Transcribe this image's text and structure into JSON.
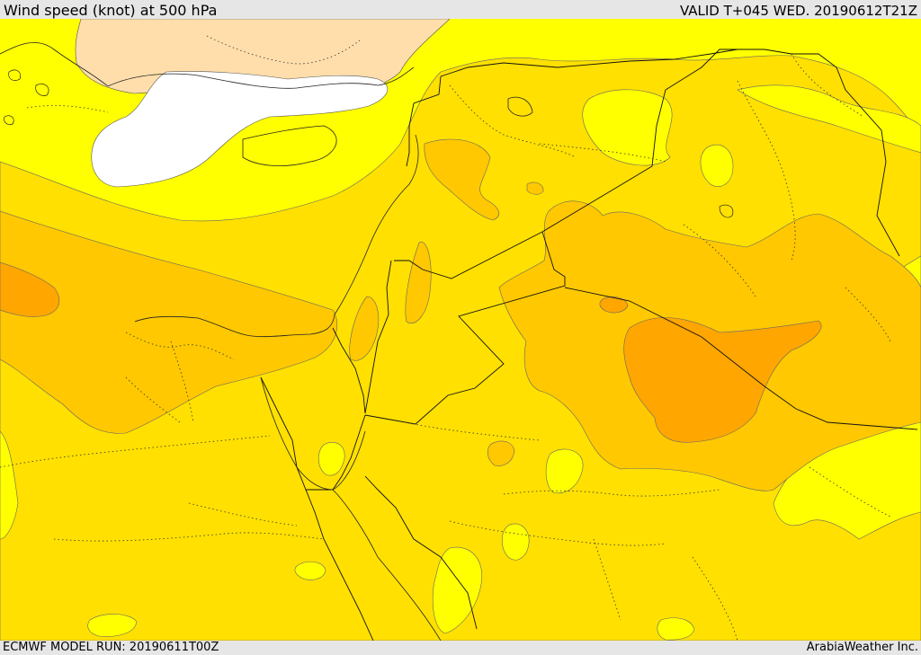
{
  "header": {
    "title": "Wind speed (knot) at 500 hPa",
    "valid": "VALID T+045 WED. 20190612T21Z"
  },
  "footer": {
    "model_run": "ECMWF MODEL RUN: 20190611T00Z",
    "brand": "ArabiaWeather Inc."
  },
  "colors": {
    "yellow": "#ffff00",
    "light_gold": "#ffe000",
    "gold": "#ffc800",
    "orange": "#ffb000",
    "dark_orange": "#ff9a00",
    "peach": "#ffdeab",
    "white": "#ffffff"
  }
}
